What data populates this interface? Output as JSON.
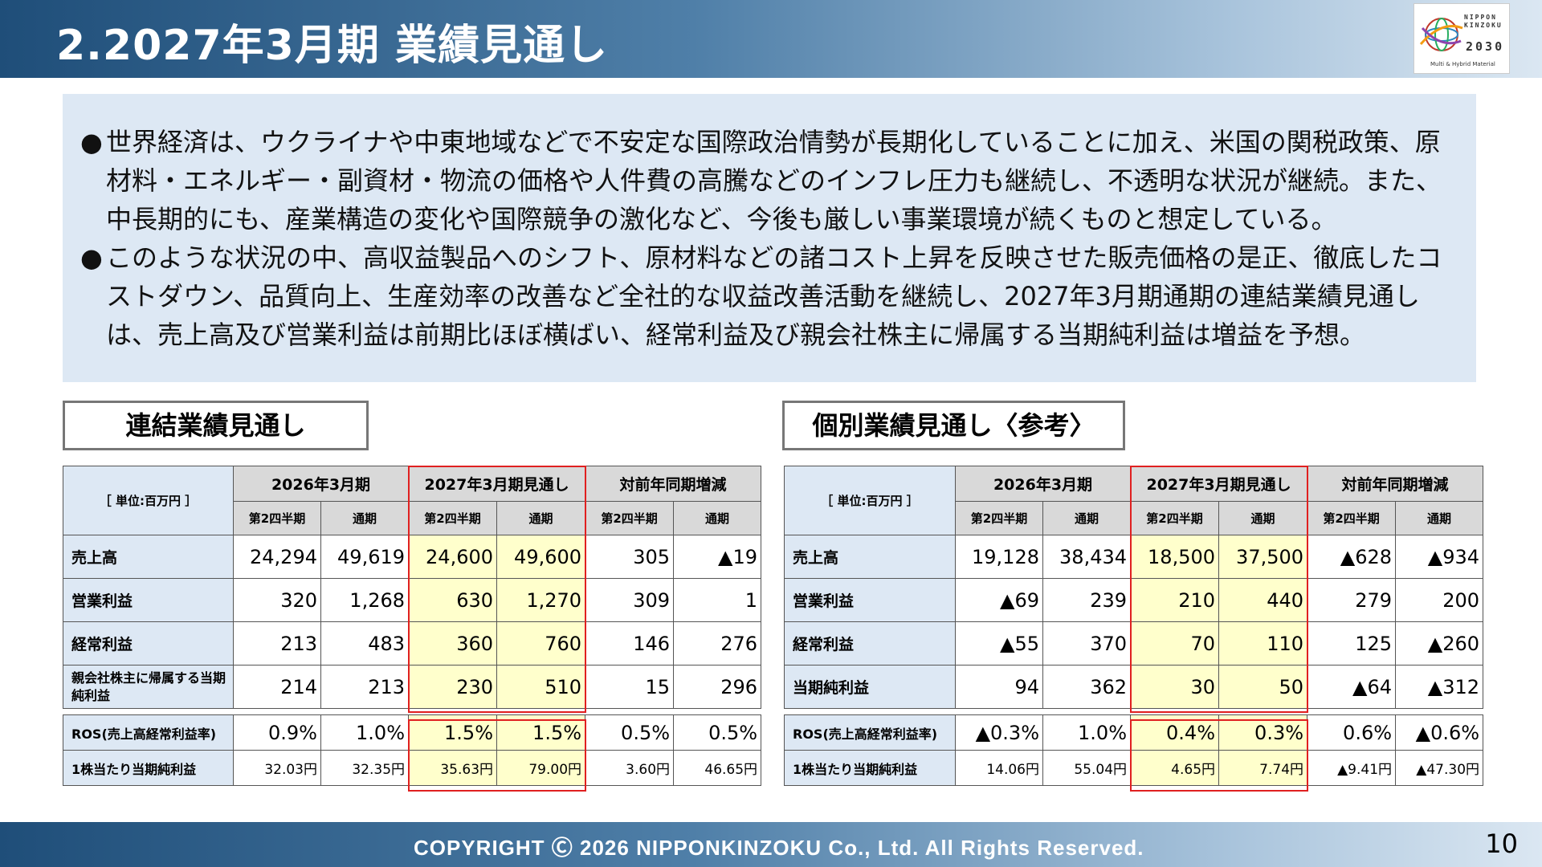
{
  "header": {
    "title": "2.2027年3月期 業績見通し",
    "logo": {
      "line1": "NIPPON",
      "line2": "KINZOKU",
      "line3": "2030",
      "line4": "Multi & Hybrid Material"
    }
  },
  "summary": {
    "bullet_mark": "●",
    "bullets": [
      "世界経済は、ウクライナや中東地域などで不安定な国際政治情勢が長期化していることに加え、米国の関税政策、原材料・エネルギー・副資材・物流の価格や人件費の高騰などのインフレ圧力も継続し、不透明な状況が継続。また、中長期的にも、産業構造の変化や国際競争の激化など、今後も厳しい事業環境が続くものと想定している。",
      "このような状況の中、高収益製品へのシフト、原材料などの諸コスト上昇を反映させた販売価格の是正、徹底したコストダウン、品質向上、生産効率の改善など全社的な収益改善活動を継続し、2027年3月期通期の連結業績見通しは、売上高及び営業利益は前期比ほぼ横ばい、経常利益及び親会社株主に帰属する当期純利益は増益を予想。"
    ]
  },
  "consolidated": {
    "title": "連結業績見通し",
    "unit": "［ 単位:百万円 ］",
    "groups": [
      "2026年3月期",
      "2027年3月期見通し",
      "対前年同期増減"
    ],
    "subheaders": [
      "第2四半期",
      "通期",
      "第2四半期",
      "通期",
      "第2四半期",
      "通期"
    ],
    "rows": [
      {
        "label": "売上高",
        "values": [
          "24,294",
          "49,619",
          "24,600",
          "49,600",
          "305",
          "▲19"
        ]
      },
      {
        "label": "営業利益",
        "values": [
          "320",
          "1,268",
          "630",
          "1,270",
          "309",
          "1"
        ]
      },
      {
        "label": "経常利益",
        "values": [
          "213",
          "483",
          "360",
          "760",
          "146",
          "276"
        ]
      },
      {
        "label": "親会社株主に帰属する当期純利益",
        "values": [
          "214",
          "213",
          "230",
          "510",
          "15",
          "296"
        ]
      }
    ],
    "extra_rows": [
      {
        "label": "ROS(売上高経常利益率)",
        "values": [
          "0.9%",
          "1.0%",
          "1.5%",
          "1.5%",
          "0.5%",
          "0.5%"
        ]
      },
      {
        "label": "1株当たり当期純利益",
        "values": [
          "32.03円",
          "32.35円",
          "35.63円",
          "79.00円",
          "3.60円",
          "46.65円"
        ]
      }
    ]
  },
  "standalone": {
    "title": "個別業績見通し〈参考〉",
    "unit": "［ 単位:百万円 ］",
    "groups": [
      "2026年3月期",
      "2027年3月期見通し",
      "対前年同期増減"
    ],
    "subheaders": [
      "第2四半期",
      "通期",
      "第2四半期",
      "通期",
      "第2四半期",
      "通期"
    ],
    "rows": [
      {
        "label": "売上高",
        "values": [
          "19,128",
          "38,434",
          "18,500",
          "37,500",
          "▲628",
          "▲934"
        ]
      },
      {
        "label": "営業利益",
        "values": [
          "▲69",
          "239",
          "210",
          "440",
          "279",
          "200"
        ]
      },
      {
        "label": "経常利益",
        "values": [
          "▲55",
          "370",
          "70",
          "110",
          "125",
          "▲260"
        ]
      },
      {
        "label": "当期純利益",
        "values": [
          "94",
          "362",
          "30",
          "50",
          "▲64",
          "▲312"
        ]
      }
    ],
    "extra_rows": [
      {
        "label": "ROS(売上高経常利益率)",
        "values": [
          "▲0.3%",
          "1.0%",
          "0.4%",
          "0.3%",
          "0.6%",
          "▲0.6%"
        ]
      },
      {
        "label": "1株当たり当期純利益",
        "values": [
          "14.06円",
          "55.04円",
          "4.65円",
          "7.74円",
          "▲9.41円",
          "▲47.30円"
        ]
      }
    ]
  },
  "footer": {
    "copyright": "COPYRIGHT Ⓒ 2026 NIPPONKINZOKU Co., Ltd. All Rights Reserved.",
    "page_number": "10"
  },
  "colors": {
    "header_dark": "#1f4e79",
    "summary_bg": "#dde8f4",
    "header_cell": "#d9d9d9",
    "forecast_cell": "#ffffcc",
    "forecast_border": "#e02020"
  }
}
